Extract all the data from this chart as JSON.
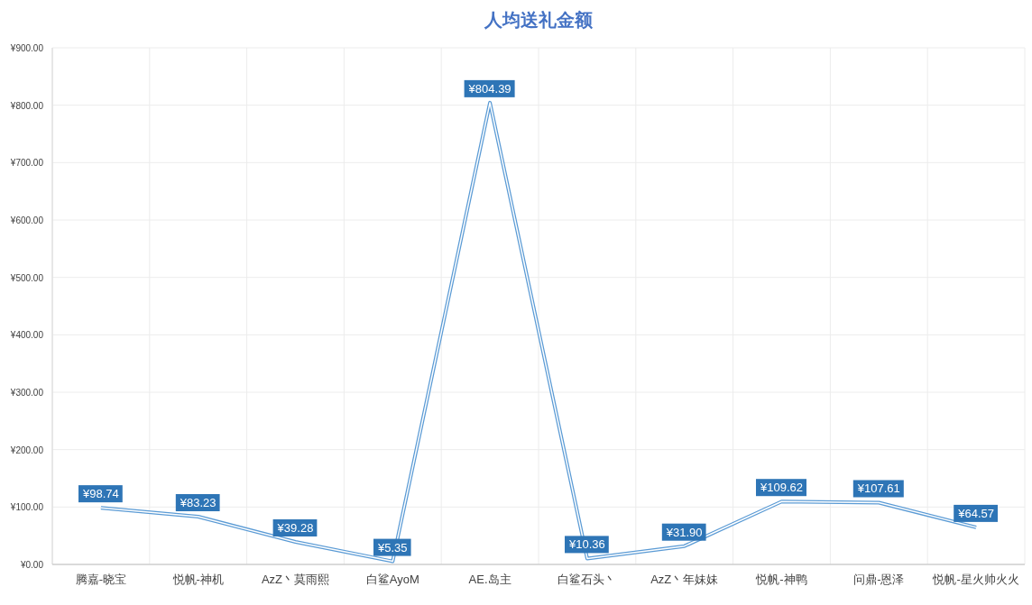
{
  "chart_data": {
    "type": "line",
    "title": "人均送礼金额",
    "categories": [
      "腾嘉-晓宝",
      "悦帆-神机",
      "AzZ丶莫雨熙",
      "白鲨AyoM",
      "AE.岛主",
      "白鲨石头丶",
      "AzZ丶年妹妹",
      "悦帆-神鸭",
      "问鼎-恩泽",
      "悦帆-星火帅火火"
    ],
    "series": [
      {
        "color": "#5b9bd5",
        "values": [
          98.74,
          83.23,
          39.28,
          5.35,
          804.39,
          10.36,
          31.9,
          109.62,
          107.61,
          64.57
        ],
        "value_labels": [
          "¥98.74",
          "¥83.23",
          "¥39.28",
          "¥5.35",
          "¥804.39",
          "¥10.36",
          "¥31.90",
          "¥109.62",
          "¥107.61",
          "¥64.57"
        ]
      }
    ],
    "ylim": [
      0,
      900
    ],
    "yticks": [
      {
        "value": 0,
        "label": "¥0.00"
      },
      {
        "value": 100,
        "label": "¥100.00"
      },
      {
        "value": 200,
        "label": "¥200.00"
      },
      {
        "value": 300,
        "label": "¥300.00"
      },
      {
        "value": 400,
        "label": "¥400.00"
      },
      {
        "value": 500,
        "label": "¥500.00"
      },
      {
        "value": 600,
        "label": "¥600.00"
      },
      {
        "value": 700,
        "label": "¥700.00"
      },
      {
        "value": 800,
        "label": "¥800.00"
      },
      {
        "value": 900,
        "label": "¥900.00"
      }
    ],
    "grid": true,
    "marker": "none",
    "line_style": "solid"
  }
}
